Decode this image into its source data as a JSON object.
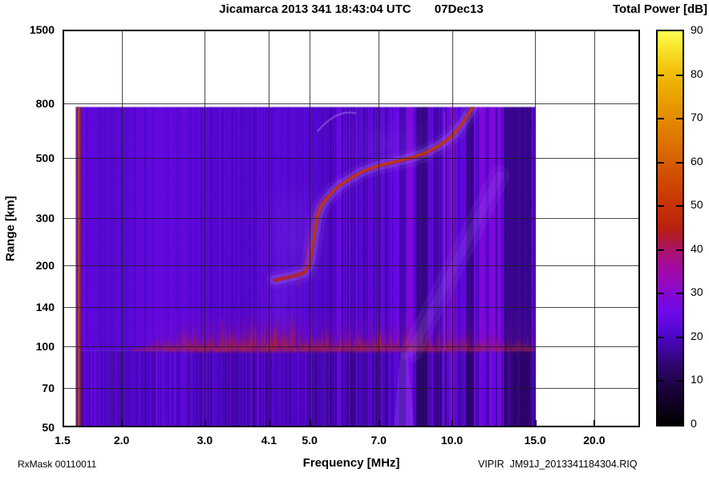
{
  "title": {
    "text": "Jicamarca 2013 341 18:43:04 UTC       07Dec13"
  },
  "colorbar": {
    "title": "Total Power [dB]",
    "min": 0,
    "max": 90,
    "tick_values": [
      0,
      10,
      20,
      30,
      40,
      50,
      60,
      70,
      80,
      90
    ],
    "gradient_stops": [
      [
        0,
        "#000000"
      ],
      [
        4,
        "#0d011c"
      ],
      [
        9,
        "#1e0342"
      ],
      [
        14,
        "#300575"
      ],
      [
        18,
        "#4306ab"
      ],
      [
        21,
        "#5207cd"
      ],
      [
        23,
        "#5f08dd"
      ],
      [
        26,
        "#6f0ae8"
      ],
      [
        29,
        "#7f08d8"
      ],
      [
        32,
        "#9309c2"
      ],
      [
        36,
        "#a30ba2"
      ],
      [
        39,
        "#a91078"
      ],
      [
        42,
        "#ae1840"
      ],
      [
        45,
        "#b92210"
      ],
      [
        50,
        "#c63206"
      ],
      [
        57,
        "#d04e00"
      ],
      [
        64,
        "#dc7000"
      ],
      [
        72,
        "#e69400"
      ],
      [
        80,
        "#f0ba06"
      ],
      [
        86,
        "#f8e428"
      ],
      [
        90,
        "#fcfc50"
      ]
    ]
  },
  "axes": {
    "x": {
      "label": "Frequency [MHz]",
      "scale": "log",
      "range": [
        1.5,
        25.0
      ],
      "ticks": [
        {
          "f": 1.5,
          "label": "1.5"
        },
        {
          "f": 2.0,
          "label": "2.0"
        },
        {
          "f": 3.0,
          "label": "3.0"
        },
        {
          "f": 4.1,
          "label": "4.1"
        },
        {
          "f": 5.0,
          "label": "5.0"
        },
        {
          "f": 7.0,
          "label": "7.0"
        },
        {
          "f": 10.0,
          "label": "10.0"
        },
        {
          "f": 15.0,
          "label": "15.0"
        },
        {
          "f": 20.0,
          "label": "20.0"
        }
      ]
    },
    "y": {
      "label": "Range [km]",
      "scale": "log",
      "range": [
        50,
        1500
      ],
      "ticks": [
        {
          "r": 50,
          "label": "50"
        },
        {
          "r": 70,
          "label": "70"
        },
        {
          "r": 100,
          "label": "100"
        },
        {
          "r": 140,
          "label": "140"
        },
        {
          "r": 200,
          "label": "200"
        },
        {
          "r": 300,
          "label": "300"
        },
        {
          "r": 500,
          "label": "500"
        },
        {
          "r": 800,
          "label": "800"
        },
        {
          "r": 1500,
          "label": "1500"
        }
      ]
    }
  },
  "footer": {
    "rx_mask": "RxMask 00110011",
    "file_id": "VIPIR  JM91J_2013341184304.RIQ"
  },
  "chart_data": {
    "type": "heatmap",
    "subtype": "ionogram",
    "title": "Jicamarca 2013 341 18:43:04 UTC       07Dec13",
    "xlabel": "Frequency [MHz]",
    "ylabel": "Range [km]",
    "zlabel": "Total Power [dB]",
    "x_range_mhz": [
      1.5,
      25.0
    ],
    "y_range_km": [
      50,
      1500
    ],
    "z_range_db": [
      0,
      90
    ],
    "grid": true,
    "data_extent": {
      "f_mhz": [
        1.6,
        15.04
      ],
      "range_km": [
        50,
        775
      ]
    },
    "background_db": 21.5,
    "calibration_stripe": {
      "f_mhz": 1.62,
      "db": 62
    },
    "e_region_band": {
      "range_bottom_km": 96.5,
      "range_core_km": [
        100,
        125
      ],
      "range_fade_top_km": 140,
      "f_start": 2.1,
      "f_blob_start": 2.4,
      "f_peak": [
        3.0,
        4.6
      ],
      "f_moderate_end": 9.9,
      "f_end": 15.0,
      "peak_db": 46
    },
    "f_trace_o": [
      [
        4.22,
        176
      ],
      [
        4.55,
        181
      ],
      [
        4.88,
        188
      ],
      [
        5.0,
        201
      ],
      [
        5.1,
        247
      ],
      [
        5.18,
        299
      ],
      [
        5.28,
        330
      ],
      [
        5.45,
        355
      ],
      [
        5.62,
        378
      ],
      [
        5.8,
        397
      ],
      [
        6.05,
        416
      ],
      [
        6.42,
        443
      ],
      [
        6.94,
        467
      ],
      [
        7.65,
        487
      ],
      [
        8.27,
        504
      ],
      [
        8.77,
        522
      ],
      [
        9.3,
        551
      ],
      [
        9.79,
        586
      ],
      [
        10.18,
        623
      ],
      [
        10.54,
        677
      ],
      [
        10.83,
        727
      ],
      [
        11.09,
        775
      ]
    ],
    "f_trace_x": [
      [
        4.72,
        168
      ],
      [
        4.82,
        186
      ],
      [
        4.92,
        220
      ],
      [
        5.0,
        262
      ],
      [
        5.08,
        300
      ],
      [
        5.22,
        338
      ],
      [
        5.4,
        362
      ]
    ],
    "f_trace_double": [
      [
        6.05,
        430
      ],
      [
        6.94,
        458
      ],
      [
        7.65,
        478
      ],
      [
        8.27,
        495
      ],
      [
        8.77,
        512
      ],
      [
        9.3,
        540
      ]
    ],
    "trace_db": 48,
    "striations": {
      "seed": 7,
      "jitter_db_low_f": 2.2,
      "jitter_db_high_f": 5.2,
      "high_f_start_mhz": 5.5,
      "bright_columns_f": [
        [
          8.0,
          8.25
        ],
        [
          9.85,
          10.1
        ],
        [
          11.4,
          11.75
        ],
        [
          12.0,
          12.3
        ],
        [
          12.45,
          12.7
        ]
      ],
      "dark_columns_f": [
        [
          8.4,
          8.85
        ],
        [
          10.7,
          11.1
        ],
        [
          12.85,
          14.7
        ]
      ],
      "pink_line_f": 9.6
    },
    "sub_e_plume": {
      "f_mhz": 7.9,
      "range_top_km": 95
    },
    "oblique_streak": {
      "from_f_km": [
        8.2,
        95
      ],
      "to_f_km": [
        12.6,
        430
      ]
    },
    "wisp": {
      "from_f_km": [
        5.2,
        630
      ],
      "to_f_km": [
        6.25,
        735
      ]
    }
  }
}
